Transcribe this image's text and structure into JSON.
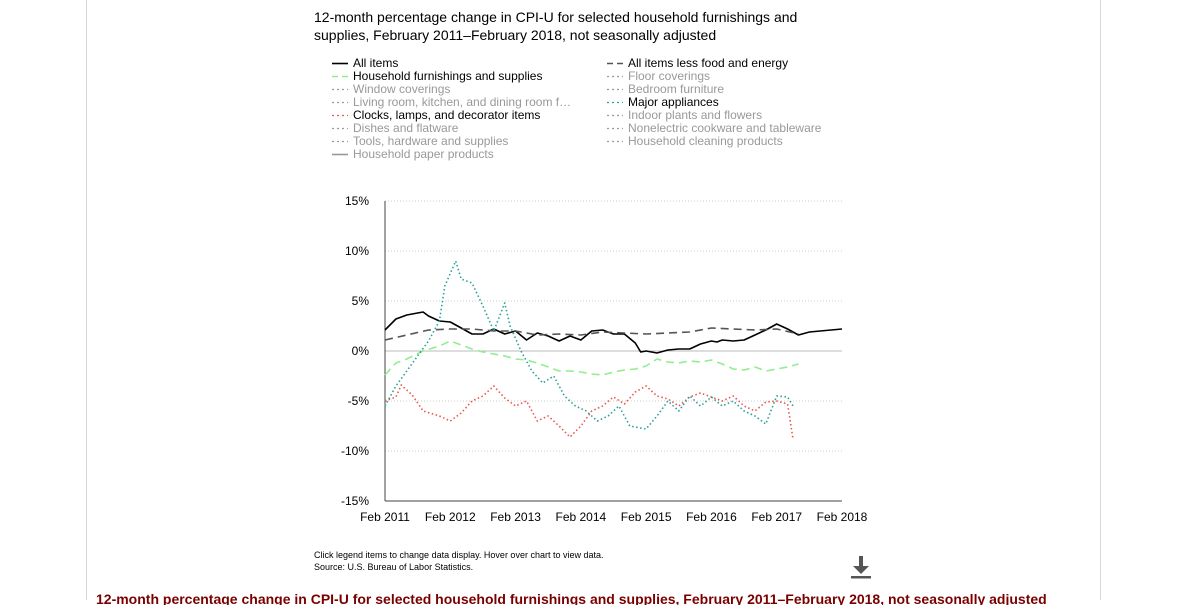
{
  "header": {
    "title_line1": "12-month percentage change in CPI-U for selected household furnishings and",
    "title_line2": "supplies, February 2011–February 2018, not seasonally adjusted"
  },
  "legend": {
    "left": [
      {
        "label": "All items",
        "color": "#000000",
        "style": "solid",
        "active": true
      },
      {
        "label": "Household furnishings and supplies",
        "color": "#90ee90",
        "style": "dashed",
        "active": true
      },
      {
        "label": "Window coverings",
        "color": "#999999",
        "style": "dotted",
        "active": false
      },
      {
        "label": "Living room, kitchen, and dining room f…",
        "color": "#999999",
        "style": "dotted",
        "active": false
      },
      {
        "label": "Clocks, lamps, and decorator items",
        "color": "#e8564f",
        "style": "dotted",
        "active": true
      },
      {
        "label": "Dishes and flatware",
        "color": "#999999",
        "style": "dotted",
        "active": false
      },
      {
        "label": "Tools, hardware and supplies",
        "color": "#999999",
        "style": "dotted",
        "active": false
      },
      {
        "label": "Household paper products",
        "color": "#999999",
        "style": "solid",
        "active": false
      }
    ],
    "right": [
      {
        "label": "All items less food and energy",
        "color": "#555555",
        "style": "dashed",
        "active": true
      },
      {
        "label": "Floor coverings",
        "color": "#999999",
        "style": "dotted",
        "active": false
      },
      {
        "label": "Bedroom furniture",
        "color": "#999999",
        "style": "dotted",
        "active": false
      },
      {
        "label": "Major appliances",
        "color": "#2aa198",
        "style": "dotted",
        "active": true
      },
      {
        "label": "Indoor plants and flowers",
        "color": "#999999",
        "style": "dotted",
        "active": false
      },
      {
        "label": "Nonelectric cookware and tableware",
        "color": "#999999",
        "style": "dotted",
        "active": false
      },
      {
        "label": "Household cleaning products",
        "color": "#999999",
        "style": "dotted",
        "active": false
      }
    ]
  },
  "chart_data": {
    "type": "line",
    "title": "12-month percentage change in CPI-U for selected household furnishings and supplies, February 2011–February 2018, not seasonally adjusted",
    "xlabel": "",
    "ylabel": "",
    "x_ticks": [
      "Feb 2011",
      "Feb 2012",
      "Feb 2013",
      "Feb 2014",
      "Feb 2015",
      "Feb 2016",
      "Feb 2017",
      "Feb 2018"
    ],
    "y_ticks": [
      "15%",
      "10%",
      "5%",
      "0%",
      "-5%",
      "-10%",
      "-15%"
    ],
    "ylim": [
      -15,
      15
    ],
    "grid": true,
    "legend_position": "top",
    "series": [
      {
        "name": "All items",
        "color": "#000000",
        "dash": "solid",
        "points": [
          [
            "Feb 2011",
            2.1
          ],
          [
            "Apr 2011",
            3.2
          ],
          [
            "Jun 2011",
            3.6
          ],
          [
            "Aug 2011",
            3.8
          ],
          [
            "Sep 2011",
            3.9
          ],
          [
            "Oct 2011",
            3.5
          ],
          [
            "Dec 2011",
            3.0
          ],
          [
            "Feb 2012",
            2.9
          ],
          [
            "Apr 2012",
            2.3
          ],
          [
            "Jun 2012",
            1.7
          ],
          [
            "Aug 2012",
            1.7
          ],
          [
            "Oct 2012",
            2.2
          ],
          [
            "Dec 2012",
            1.7
          ],
          [
            "Feb 2013",
            2.0
          ],
          [
            "Apr 2013",
            1.1
          ],
          [
            "Jun 2013",
            1.8
          ],
          [
            "Aug 2013",
            1.5
          ],
          [
            "Oct 2013",
            1.0
          ],
          [
            "Dec 2013",
            1.5
          ],
          [
            "Feb 2014",
            1.1
          ],
          [
            "Apr 2014",
            2.0
          ],
          [
            "Jun 2014",
            2.1
          ],
          [
            "Aug 2014",
            1.7
          ],
          [
            "Oct 2014",
            1.7
          ],
          [
            "Dec 2014",
            0.8
          ],
          [
            "Jan 2015",
            -0.1
          ],
          [
            "Feb 2015",
            0.0
          ],
          [
            "Apr 2015",
            -0.2
          ],
          [
            "Jun 2015",
            0.1
          ],
          [
            "Aug 2015",
            0.2
          ],
          [
            "Oct 2015",
            0.2
          ],
          [
            "Dec 2015",
            0.7
          ],
          [
            "Feb 2016",
            1.0
          ],
          [
            "Mar 2016",
            0.9
          ],
          [
            "Apr 2016",
            1.1
          ],
          [
            "Jun 2016",
            1.0
          ],
          [
            "Aug 2016",
            1.1
          ],
          [
            "Oct 2016",
            1.6
          ],
          [
            "Dec 2016",
            2.1
          ],
          [
            "Feb 2017",
            2.7
          ],
          [
            "Apr 2017",
            2.2
          ],
          [
            "Jun 2017",
            1.6
          ],
          [
            "Aug 2017",
            1.9
          ],
          [
            "Oct 2017",
            2.0
          ],
          [
            "Dec 2017",
            2.1
          ],
          [
            "Feb 2018",
            2.2
          ]
        ]
      },
      {
        "name": "All items less food and energy",
        "color": "#555555",
        "dash": "dashed",
        "points": [
          [
            "Feb 2011",
            1.1
          ],
          [
            "Jun 2011",
            1.6
          ],
          [
            "Oct 2011",
            2.1
          ],
          [
            "Feb 2012",
            2.2
          ],
          [
            "Jun 2012",
            2.2
          ],
          [
            "Oct 2012",
            2.0
          ],
          [
            "Feb 2013",
            2.0
          ],
          [
            "Jun 2013",
            1.6
          ],
          [
            "Oct 2013",
            1.7
          ],
          [
            "Feb 2014",
            1.6
          ],
          [
            "Jun 2014",
            1.9
          ],
          [
            "Oct 2014",
            1.8
          ],
          [
            "Feb 2015",
            1.7
          ],
          [
            "Jun 2015",
            1.8
          ],
          [
            "Oct 2015",
            1.9
          ],
          [
            "Feb 2016",
            2.3
          ],
          [
            "Jun 2016",
            2.2
          ],
          [
            "Oct 2016",
            2.1
          ],
          [
            "Feb 2017",
            2.2
          ],
          [
            "Jun 2017",
            1.7
          ]
        ]
      },
      {
        "name": "Household furnishings and supplies",
        "color": "#90ee90",
        "dash": "dashed",
        "points": [
          [
            "Feb 2011",
            -2.4
          ],
          [
            "Apr 2011",
            -1.2
          ],
          [
            "Jun 2011",
            -0.8
          ],
          [
            "Sep 2011",
            0.0
          ],
          [
            "Dec 2011",
            0.5
          ],
          [
            "Feb 2012",
            1.0
          ],
          [
            "Apr 2012",
            0.6
          ],
          [
            "Jun 2012",
            0.2
          ],
          [
            "Aug 2012",
            -0.1
          ],
          [
            "Oct 2012",
            -0.3
          ],
          [
            "Dec 2012",
            -0.5
          ],
          [
            "Feb 2013",
            -0.8
          ],
          [
            "Apr 2013",
            -0.9
          ],
          [
            "Jun 2013",
            -1.2
          ],
          [
            "Aug 2013",
            -1.6
          ],
          [
            "Oct 2013",
            -2.0
          ],
          [
            "Dec 2013",
            -2.0
          ],
          [
            "Feb 2014",
            -2.1
          ],
          [
            "Apr 2014",
            -2.3
          ],
          [
            "Jun 2014",
            -2.4
          ],
          [
            "Aug 2014",
            -2.1
          ],
          [
            "Oct 2014",
            -1.9
          ],
          [
            "Dec 2014",
            -1.8
          ],
          [
            "Feb 2015",
            -1.5
          ],
          [
            "Apr 2015",
            -0.8
          ],
          [
            "Jun 2015",
            -1.1
          ],
          [
            "Aug 2015",
            -1.2
          ],
          [
            "Oct 2015",
            -1.0
          ],
          [
            "Dec 2015",
            -1.1
          ],
          [
            "Feb 2016",
            -0.9
          ],
          [
            "Apr 2016",
            -1.3
          ],
          [
            "Jun 2016",
            -1.8
          ],
          [
            "Aug 2016",
            -1.9
          ],
          [
            "Oct 2016",
            -1.6
          ],
          [
            "Dec 2016",
            -2.0
          ],
          [
            "Feb 2017",
            -1.8
          ],
          [
            "Apr 2017",
            -1.6
          ],
          [
            "Jun 2017",
            -1.3
          ]
        ]
      },
      {
        "name": "Clocks, lamps, and decorator items",
        "color": "#e8564f",
        "dash": "dotted",
        "points": [
          [
            "Feb 2011",
            -5.0
          ],
          [
            "Apr 2011",
            -4.6
          ],
          [
            "May 2011",
            -3.4
          ],
          [
            "Jul 2011",
            -4.4
          ],
          [
            "Sep 2011",
            -6.0
          ],
          [
            "Dec 2011",
            -6.5
          ],
          [
            "Feb 2012",
            -7.0
          ],
          [
            "Apr 2012",
            -6.2
          ],
          [
            "Jun 2012",
            -5.0
          ],
          [
            "Aug 2012",
            -4.5
          ],
          [
            "Oct 2012",
            -3.5
          ],
          [
            "Dec 2012",
            -4.7
          ],
          [
            "Feb 2013",
            -5.5
          ],
          [
            "Apr 2013",
            -5.0
          ],
          [
            "Jun 2013",
            -7.0
          ],
          [
            "Aug 2013",
            -6.5
          ],
          [
            "Oct 2013",
            -7.5
          ],
          [
            "Dec 2013",
            -8.6
          ],
          [
            "Feb 2014",
            -7.5
          ],
          [
            "Apr 2014",
            -6.0
          ],
          [
            "Jun 2014",
            -5.5
          ],
          [
            "Aug 2014",
            -4.6
          ],
          [
            "Oct 2014",
            -5.3
          ],
          [
            "Dec 2014",
            -4.1
          ],
          [
            "Feb 2015",
            -3.5
          ],
          [
            "Apr 2015",
            -4.5
          ],
          [
            "Jun 2015",
            -4.8
          ],
          [
            "Aug 2015",
            -5.5
          ],
          [
            "Oct 2015",
            -4.6
          ],
          [
            "Dec 2015",
            -4.2
          ],
          [
            "Feb 2016",
            -4.6
          ],
          [
            "Apr 2016",
            -5.0
          ],
          [
            "Jun 2016",
            -4.5
          ],
          [
            "Aug 2016",
            -5.5
          ],
          [
            "Oct 2016",
            -6.0
          ],
          [
            "Dec 2016",
            -5.1
          ],
          [
            "Feb 2017",
            -5.0
          ],
          [
            "Apr 2017",
            -5.3
          ],
          [
            "May 2017",
            -8.8
          ]
        ]
      },
      {
        "name": "Major appliances",
        "color": "#2aa198",
        "dash": "dotted",
        "points": [
          [
            "Feb 2011",
            -5.5
          ],
          [
            "Apr 2011",
            -3.5
          ],
          [
            "Jun 2011",
            -2.0
          ],
          [
            "Aug 2011",
            -0.5
          ],
          [
            "Oct 2011",
            1.0
          ],
          [
            "Dec 2011",
            3.0
          ],
          [
            "Jan 2012",
            6.5
          ],
          [
            "Mar 2012",
            9.0
          ],
          [
            "Apr 2012",
            7.2
          ],
          [
            "Jun 2012",
            6.8
          ],
          [
            "Aug 2012",
            4.5
          ],
          [
            "Oct 2012",
            2.0
          ],
          [
            "Dec 2012",
            4.8
          ],
          [
            "Jan 2013",
            2.5
          ],
          [
            "Mar 2013",
            0.0
          ],
          [
            "May 2013",
            -2.0
          ],
          [
            "Jul 2013",
            -3.2
          ],
          [
            "Sep 2013",
            -2.5
          ],
          [
            "Nov 2013",
            -4.5
          ],
          [
            "Jan 2014",
            -5.5
          ],
          [
            "Mar 2014",
            -6.0
          ],
          [
            "May 2014",
            -7.0
          ],
          [
            "Jul 2014",
            -6.5
          ],
          [
            "Sep 2014",
            -5.5
          ],
          [
            "Nov 2014",
            -7.5
          ],
          [
            "Feb 2015",
            -7.8
          ],
          [
            "Apr 2015",
            -6.5
          ],
          [
            "Jun 2015",
            -5.0
          ],
          [
            "Aug 2015",
            -6.0
          ],
          [
            "Oct 2015",
            -4.5
          ],
          [
            "Dec 2015",
            -5.5
          ],
          [
            "Feb 2016",
            -4.6
          ],
          [
            "Apr 2016",
            -5.5
          ],
          [
            "Jun 2016",
            -5.0
          ],
          [
            "Aug 2016",
            -6.0
          ],
          [
            "Oct 2016",
            -6.5
          ],
          [
            "Dec 2016",
            -7.3
          ],
          [
            "Feb 2017",
            -4.5
          ],
          [
            "Apr 2017",
            -4.6
          ],
          [
            "May 2017",
            -5.5
          ]
        ]
      }
    ]
  },
  "footer": {
    "note_line1": "Click legend items to change data display. Hover over chart to view data.",
    "note_line2": "Source: U.S. Bureau of Labor Statistics.",
    "download_icon": "download-icon",
    "bottom_title": "12-month percentage change in CPI-U for selected household furnishings and supplies, February 2011–February 2018, not seasonally adjusted"
  }
}
